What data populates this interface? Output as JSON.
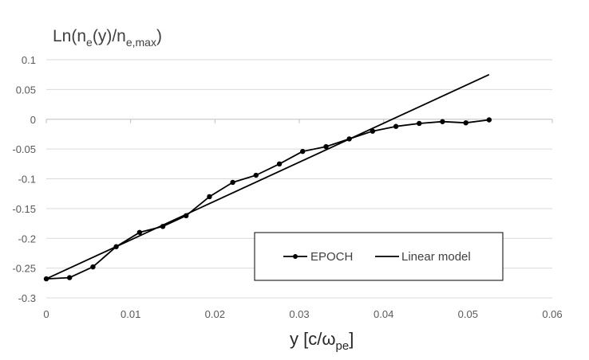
{
  "chart_data": {
    "type": "line",
    "ylabel": {
      "base": "Ln(n",
      "sub1": "e",
      "mid": "(y)/n",
      "sub2": "e,max",
      "end": ")"
    },
    "xlabel": {
      "base": "y  [c/ω",
      "sub": "pe",
      "end": "]"
    },
    "xlim": [
      0,
      0.06
    ],
    "ylim": [
      -0.3,
      0.1
    ],
    "xticks": [
      0,
      0.01,
      0.02,
      0.03,
      0.04,
      0.05,
      0.06
    ],
    "yticks": [
      0.1,
      0.05,
      0,
      -0.05,
      -0.1,
      -0.15,
      -0.2,
      -0.25,
      -0.3
    ],
    "xtick_labels": [
      "0",
      "0.01",
      "0.02",
      "0.03",
      "0.04",
      "0.05",
      "0.06"
    ],
    "ytick_labels": [
      "0.1",
      "0.05",
      "0",
      "-0.05",
      "-0.1",
      "-0.15",
      "-0.2",
      "-0.25",
      "-0.3"
    ],
    "grid": "horizontal",
    "legend_position": "bottom-right",
    "series": [
      {
        "name": "EPOCH",
        "markers": true,
        "color": "#000000",
        "x": [
          0,
          0.00276,
          0.00553,
          0.00829,
          0.01106,
          0.01382,
          0.01658,
          0.01935,
          0.02211,
          0.02487,
          0.02764,
          0.0304,
          0.03317,
          0.03593,
          0.03869,
          0.04146,
          0.04422,
          0.04698,
          0.04975,
          0.05251
        ],
        "y": [
          -0.268,
          -0.266,
          -0.248,
          -0.214,
          -0.19,
          -0.18,
          -0.162,
          -0.13,
          -0.106,
          -0.094,
          -0.075,
          -0.054,
          -0.046,
          -0.033,
          -0.02,
          -0.012,
          -0.007,
          -0.004,
          -0.006,
          -0.001
        ]
      },
      {
        "name": "Linear model",
        "markers": false,
        "color": "#000000",
        "x": [
          0,
          0.0525
        ],
        "y": [
          -0.268,
          0.075
        ]
      }
    ]
  }
}
